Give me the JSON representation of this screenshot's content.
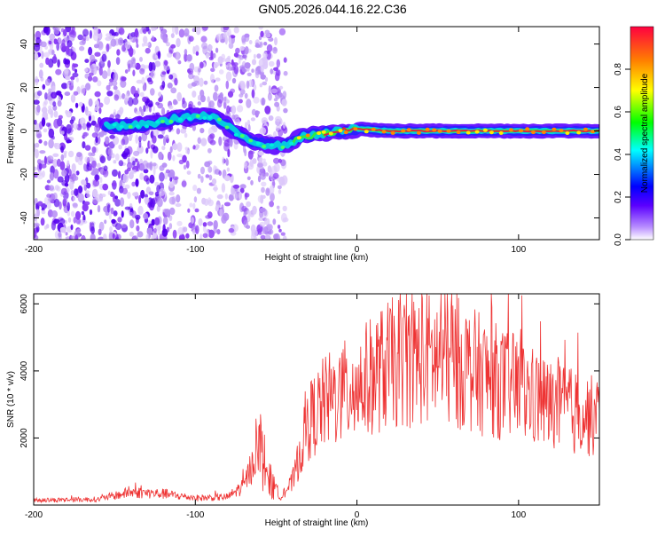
{
  "title": "GN05.2026.044.16.22.C36",
  "chart_data": [
    {
      "type": "heatmap",
      "xlabel": "Height of straight line (km)",
      "ylabel": "Frequency (Hz)",
      "xlim": [
        -200,
        150
      ],
      "ylim": [
        -50,
        48
      ],
      "xticks": [
        -200,
        -100,
        0,
        100
      ],
      "yticks": [
        -40,
        -20,
        0,
        20,
        40
      ],
      "colorbar": {
        "label": "Normalized spectral amplitude",
        "range": [
          0,
          1
        ],
        "ticks": [
          "0.0",
          "0.2",
          "0.4",
          "0.6",
          "0.8"
        ],
        "colors": [
          "#ffffff",
          "#b78cff",
          "#5a00ff",
          "#0000ff",
          "#00ffff",
          "#00ff00",
          "#ffff00",
          "#ff8000",
          "#ff0040"
        ]
      },
      "ridge": [
        {
          "x": -150,
          "y": 2
        },
        {
          "x": -130,
          "y": 3
        },
        {
          "x": -110,
          "y": 6
        },
        {
          "x": -95,
          "y": 7
        },
        {
          "x": -85,
          "y": 5
        },
        {
          "x": -75,
          "y": -1
        },
        {
          "x": -60,
          "y": -6
        },
        {
          "x": -45,
          "y": -7
        },
        {
          "x": -35,
          "y": -3
        },
        {
          "x": -20,
          "y": -1
        },
        {
          "x": 0,
          "y": 1
        },
        {
          "x": 20,
          "y": 0
        },
        {
          "x": 150,
          "y": 0
        }
      ]
    },
    {
      "type": "line",
      "xlabel": "Height of straight line (km)",
      "ylabel": "SNR (10 * v/v)",
      "xlim": [
        -200,
        150
      ],
      "ylim": [
        0,
        6300
      ],
      "xticks": [
        -200,
        -100,
        0,
        100
      ],
      "yticks": [
        2000,
        4000,
        6000
      ],
      "color": "#ee3333",
      "envelope": [
        {
          "x": -200,
          "y": 150
        },
        {
          "x": -160,
          "y": 180
        },
        {
          "x": -140,
          "y": 400
        },
        {
          "x": -120,
          "y": 350
        },
        {
          "x": -100,
          "y": 220
        },
        {
          "x": -80,
          "y": 250
        },
        {
          "x": -70,
          "y": 600
        },
        {
          "x": -60,
          "y": 1900
        },
        {
          "x": -55,
          "y": 900
        },
        {
          "x": -48,
          "y": 250
        },
        {
          "x": -40,
          "y": 700
        },
        {
          "x": -30,
          "y": 2600
        },
        {
          "x": -20,
          "y": 3200
        },
        {
          "x": 0,
          "y": 3700
        },
        {
          "x": 20,
          "y": 4400
        },
        {
          "x": 40,
          "y": 4600
        },
        {
          "x": 60,
          "y": 4500
        },
        {
          "x": 80,
          "y": 4000
        },
        {
          "x": 100,
          "y": 3600
        },
        {
          "x": 120,
          "y": 3100
        },
        {
          "x": 150,
          "y": 2700
        }
      ]
    }
  ]
}
